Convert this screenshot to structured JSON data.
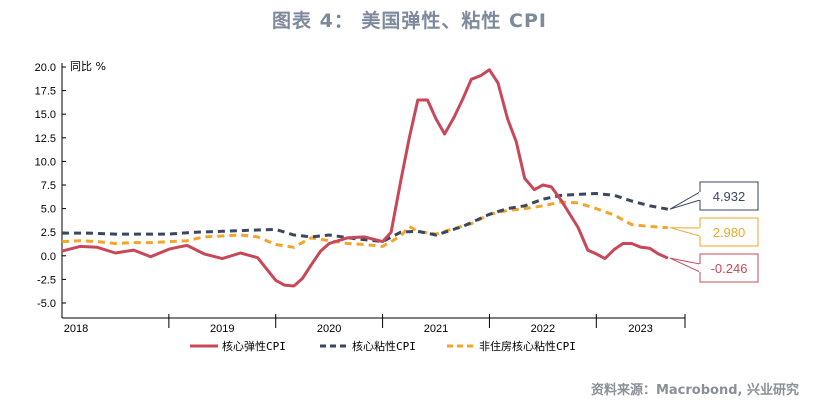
{
  "title": "图表 4：  美国弹性、粘性 CPI",
  "source": "资料来源：Macrobond, 兴业研究",
  "chart_data": {
    "type": "line",
    "ylabel": "同比 %",
    "ylim": [
      -5.0,
      20.0
    ],
    "yticks": [
      "20.0",
      "17.5",
      "15.0",
      "12.5",
      "10.0",
      "7.5",
      "5.0",
      "2.5",
      "0.0",
      "-2.5",
      "-5.0"
    ],
    "xlim": [
      2018.0,
      2023.83
    ],
    "xticks": [
      "2018",
      "2019",
      "2020",
      "2021",
      "2022",
      "2023"
    ],
    "grid": false,
    "legend": "bottom",
    "series": [
      {
        "name": "核心弹性CPI",
        "color": "#c8485a",
        "style": "solid",
        "callout": "-0.246",
        "x": [
          2018.0,
          2018.17,
          2018.33,
          2018.5,
          2018.67,
          2018.83,
          2019.0,
          2019.08,
          2019.17,
          2019.33,
          2019.5,
          2019.67,
          2019.83,
          2020.0,
          2020.08,
          2020.17,
          2020.25,
          2020.33,
          2020.42,
          2020.5,
          2020.67,
          2020.83,
          2021.0,
          2021.08,
          2021.17,
          2021.25,
          2021.33,
          2021.42,
          2021.5,
          2021.58,
          2021.67,
          2021.75,
          2021.83,
          2021.92,
          2022.0,
          2022.08,
          2022.17,
          2022.25,
          2022.33,
          2022.42,
          2022.5,
          2022.58,
          2022.67,
          2022.83,
          2022.92,
          2023.0,
          2023.08,
          2023.17,
          2023.25,
          2023.33,
          2023.42,
          2023.5,
          2023.58,
          2023.67
        ],
        "values": [
          0.5,
          1.0,
          0.9,
          0.3,
          0.6,
          -0.1,
          0.7,
          0.9,
          1.1,
          0.2,
          -0.3,
          0.3,
          -0.2,
          -2.6,
          -3.1,
          -3.2,
          -2.4,
          -1.0,
          0.5,
          1.3,
          1.9,
          2.0,
          1.5,
          2.5,
          7.9,
          12.5,
          16.5,
          16.5,
          14.5,
          12.9,
          14.7,
          16.6,
          18.7,
          19.1,
          19.7,
          18.3,
          14.5,
          12.1,
          8.2,
          7.0,
          7.5,
          7.3,
          5.9,
          3.0,
          0.6,
          0.2,
          -0.3,
          0.7,
          1.3,
          1.3,
          0.9,
          0.8,
          0.2,
          -0.246
        ]
      },
      {
        "name": "核心粘性CPI",
        "color": "#3b4660",
        "style": "dashed",
        "callout": "4.932",
        "x": [
          2018.0,
          2018.25,
          2018.5,
          2018.75,
          2019.0,
          2019.25,
          2019.5,
          2019.75,
          2020.0,
          2020.17,
          2020.33,
          2020.5,
          2020.75,
          2021.0,
          2021.17,
          2021.33,
          2021.5,
          2021.75,
          2022.0,
          2022.17,
          2022.33,
          2022.5,
          2022.67,
          2022.83,
          2023.0,
          2023.17,
          2023.33,
          2023.5,
          2023.67
        ],
        "values": [
          2.4,
          2.4,
          2.3,
          2.3,
          2.3,
          2.5,
          2.6,
          2.7,
          2.8,
          2.2,
          2.0,
          2.2,
          1.8,
          1.5,
          2.5,
          2.6,
          2.2,
          3.1,
          4.4,
          5.0,
          5.3,
          6.0,
          6.4,
          6.5,
          6.6,
          6.4,
          5.8,
          5.3,
          4.932
        ]
      },
      {
        "name": "非住房核心粘性CPI",
        "color": "#f0a62a",
        "style": "dashed",
        "callout": "2.980",
        "x": [
          2018.0,
          2018.17,
          2018.33,
          2018.5,
          2018.67,
          2018.83,
          2019.0,
          2019.17,
          2019.33,
          2019.5,
          2019.67,
          2019.83,
          2020.0,
          2020.17,
          2020.33,
          2020.5,
          2020.67,
          2020.83,
          2021.0,
          2021.08,
          2021.17,
          2021.25,
          2021.33,
          2021.5,
          2021.67,
          2021.83,
          2022.0,
          2022.17,
          2022.33,
          2022.5,
          2022.67,
          2022.83,
          2023.0,
          2023.17,
          2023.33,
          2023.5,
          2023.67
        ],
        "values": [
          1.5,
          1.6,
          1.5,
          1.3,
          1.4,
          1.4,
          1.5,
          1.6,
          2.0,
          2.1,
          2.2,
          2.0,
          1.2,
          0.9,
          1.9,
          1.6,
          1.3,
          1.2,
          1.0,
          1.5,
          2.1,
          3.1,
          2.6,
          2.3,
          2.9,
          3.4,
          4.4,
          4.8,
          5.0,
          5.3,
          5.7,
          5.6,
          5.0,
          4.3,
          3.3,
          3.1,
          2.98
        ]
      }
    ]
  }
}
